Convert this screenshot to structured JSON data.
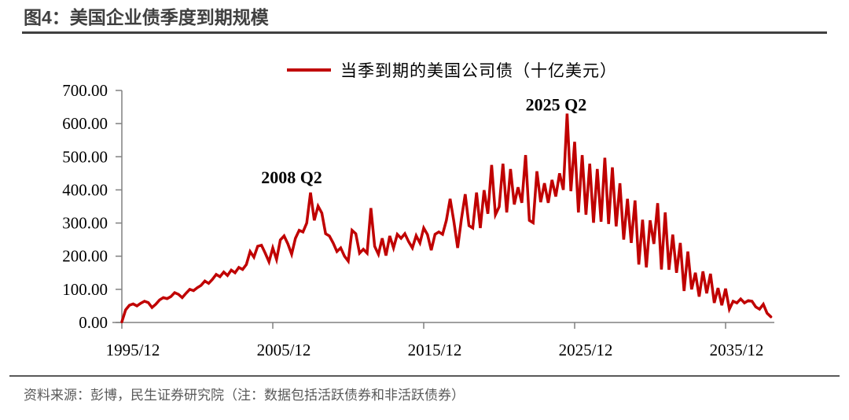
{
  "header": {
    "title": "图4：美国企业债季度到期规模"
  },
  "legend": {
    "label": "当季到期的美国公司债（十亿美元）"
  },
  "footer": {
    "source": "资料来源：彭博，民生证券研究院（注：数据包括活跃债券和非活跃债券）"
  },
  "colors": {
    "line": "#C00000",
    "title": "#404040",
    "axis": "#808080",
    "tick_label": "#000000",
    "annotation": "#000000",
    "source_text": "#595959"
  },
  "chart_data": {
    "type": "line",
    "title": "图4：美国企业债季度到期规模",
    "series_name": "当季到期的美国公司债（十亿美元）",
    "ylabel": "",
    "xlabel": "",
    "ylim": [
      0,
      700
    ],
    "grid": false,
    "legend_position": "top",
    "y_tick_labels": [
      "0.00",
      "100.00",
      "200.00",
      "300.00",
      "400.00",
      "500.00",
      "600.00",
      "700.00"
    ],
    "x_tick_labels": [
      "1995/12",
      "2005/12",
      "2015/12",
      "2025/12",
      "2035/12"
    ],
    "annotations": [
      {
        "label": "2008 Q2",
        "anchor_x": "2008/06",
        "dx": -24,
        "y_value": 420
      },
      {
        "label": "2025 Q2",
        "anchor_x": "2025/06",
        "dx": -14,
        "y_value": 640
      }
    ],
    "x": [
      "1995/12",
      "1996/03",
      "1996/06",
      "1996/09",
      "1996/12",
      "1997/03",
      "1997/06",
      "1997/09",
      "1997/12",
      "1998/03",
      "1998/06",
      "1998/09",
      "1998/12",
      "1999/03",
      "1999/06",
      "1999/09",
      "1999/12",
      "2000/03",
      "2000/06",
      "2000/09",
      "2000/12",
      "2001/03",
      "2001/06",
      "2001/09",
      "2001/12",
      "2002/03",
      "2002/06",
      "2002/09",
      "2002/12",
      "2003/03",
      "2003/06",
      "2003/09",
      "2003/12",
      "2004/03",
      "2004/06",
      "2004/09",
      "2004/12",
      "2005/03",
      "2005/06",
      "2005/09",
      "2005/12",
      "2006/03",
      "2006/06",
      "2006/09",
      "2006/12",
      "2007/03",
      "2007/06",
      "2007/09",
      "2007/12",
      "2008/03",
      "2008/06",
      "2008/09",
      "2008/12",
      "2009/03",
      "2009/06",
      "2009/09",
      "2009/12",
      "2010/03",
      "2010/06",
      "2010/09",
      "2010/12",
      "2011/03",
      "2011/06",
      "2011/09",
      "2011/12",
      "2012/03",
      "2012/06",
      "2012/09",
      "2012/12",
      "2013/03",
      "2013/06",
      "2013/09",
      "2013/12",
      "2014/03",
      "2014/06",
      "2014/09",
      "2014/12",
      "2015/03",
      "2015/06",
      "2015/09",
      "2015/12",
      "2016/03",
      "2016/06",
      "2016/09",
      "2016/12",
      "2017/03",
      "2017/06",
      "2017/09",
      "2017/12",
      "2018/03",
      "2018/06",
      "2018/09",
      "2018/12",
      "2019/03",
      "2019/06",
      "2019/09",
      "2019/12",
      "2020/03",
      "2020/06",
      "2020/09",
      "2020/12",
      "2021/03",
      "2021/06",
      "2021/09",
      "2021/12",
      "2022/03",
      "2022/06",
      "2022/09",
      "2022/12",
      "2023/03",
      "2023/06",
      "2023/09",
      "2023/12",
      "2024/03",
      "2024/06",
      "2024/09",
      "2024/12",
      "2025/03",
      "2025/06",
      "2025/09",
      "2025/12",
      "2026/03",
      "2026/06",
      "2026/09",
      "2026/12",
      "2027/03",
      "2027/06",
      "2027/09",
      "2027/12",
      "2028/03",
      "2028/06",
      "2028/09",
      "2028/12",
      "2029/03",
      "2029/06",
      "2029/09",
      "2029/12",
      "2030/03",
      "2030/06",
      "2030/09",
      "2030/12",
      "2031/03",
      "2031/06",
      "2031/09",
      "2031/12",
      "2032/03",
      "2032/06",
      "2032/09",
      "2032/12",
      "2033/03",
      "2033/06",
      "2033/09",
      "2033/12",
      "2034/03",
      "2034/06",
      "2034/09",
      "2034/12",
      "2035/03",
      "2035/06",
      "2035/09",
      "2035/12",
      "2036/03",
      "2036/06",
      "2036/09",
      "2036/12",
      "2037/03",
      "2037/06",
      "2037/09",
      "2037/12",
      "2038/03",
      "2038/06",
      "2038/09",
      "2038/12"
    ],
    "values": [
      2,
      38,
      52,
      56,
      50,
      58,
      64,
      60,
      45,
      55,
      68,
      75,
      72,
      78,
      90,
      85,
      75,
      88,
      100,
      96,
      105,
      112,
      125,
      118,
      130,
      145,
      138,
      152,
      142,
      158,
      150,
      166,
      160,
      175,
      214,
      197,
      230,
      233,
      209,
      183,
      225,
      190,
      249,
      261,
      237,
      206,
      254,
      278,
      273,
      300,
      392,
      308,
      351,
      330,
      268,
      261,
      240,
      214,
      225,
      200,
      185,
      278,
      268,
      209,
      221,
      209,
      345,
      230,
      206,
      254,
      202,
      261,
      225,
      266,
      254,
      268,
      244,
      225,
      262,
      240,
      285,
      265,
      218,
      266,
      273,
      266,
      308,
      373,
      304,
      225,
      313,
      387,
      292,
      285,
      392,
      285,
      399,
      328,
      475,
      325,
      349,
      479,
      332,
      463,
      356,
      408,
      361,
      505,
      308,
      301,
      456,
      363,
      420,
      361,
      430,
      380,
      450,
      400,
      630,
      396,
      545,
      332,
      505,
      325,
      479,
      301,
      463,
      304,
      497,
      297,
      468,
      290,
      420,
      250,
      373,
      240,
      368,
      175,
      310,
      166,
      308,
      237,
      360,
      160,
      332,
      159,
      265,
      150,
      240,
      95,
      214,
      100,
      150,
      78,
      154,
      88,
      147,
      59,
      104,
      52,
      102,
      40,
      64,
      59,
      71,
      59,
      66,
      64,
      47,
      40,
      55,
      28,
      17
    ]
  }
}
